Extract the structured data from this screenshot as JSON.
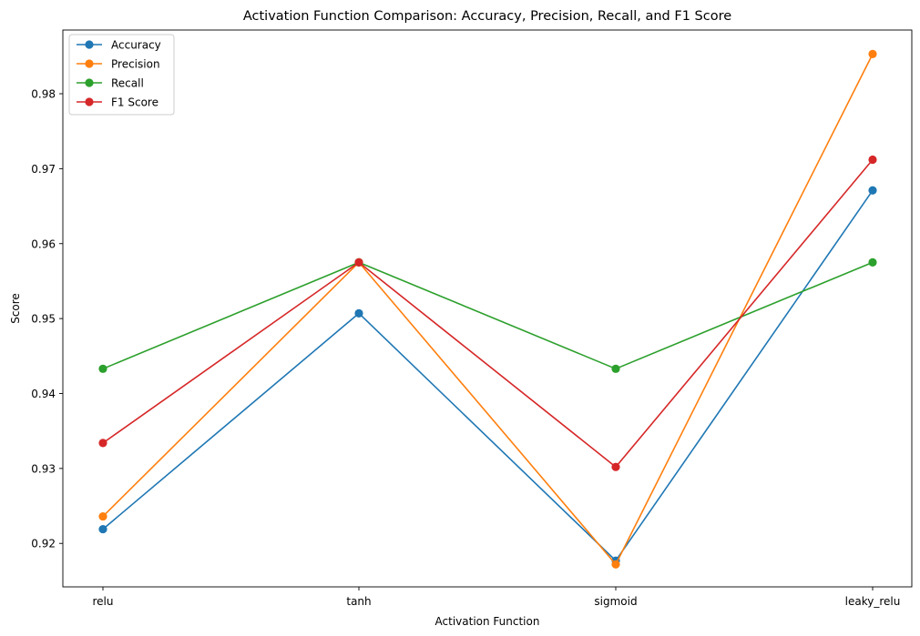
{
  "chart_data": {
    "type": "line",
    "title": "Activation Function Comparison: Accuracy, Precision, Recall, and F1 Score",
    "xlabel": "Activation Function",
    "ylabel": "Score",
    "categories": [
      "relu",
      "tanh",
      "sigmoid",
      "leaky_relu"
    ],
    "ylim": [
      0.9142,
      0.9885
    ],
    "yticks": [
      0.92,
      0.93,
      0.94,
      0.95,
      0.96,
      0.97,
      0.98
    ],
    "ytick_labels": [
      "0.92",
      "0.93",
      "0.94",
      "0.95",
      "0.96",
      "0.97",
      "0.98"
    ],
    "grid": false,
    "legend_position": "top-left",
    "series": [
      {
        "name": "Accuracy",
        "color": "#1f77b4",
        "values": [
          0.9219,
          0.9507,
          0.9177,
          0.9671
        ]
      },
      {
        "name": "Precision",
        "color": "#ff7f0e",
        "values": [
          0.9236,
          0.9575,
          0.9172,
          0.9853
        ]
      },
      {
        "name": "Recall",
        "color": "#2ca02c",
        "values": [
          0.9433,
          0.9575,
          0.9433,
          0.9575
        ]
      },
      {
        "name": "F1 Score",
        "color": "#d62728",
        "values": [
          0.9334,
          0.9575,
          0.9302,
          0.9712
        ]
      }
    ]
  }
}
